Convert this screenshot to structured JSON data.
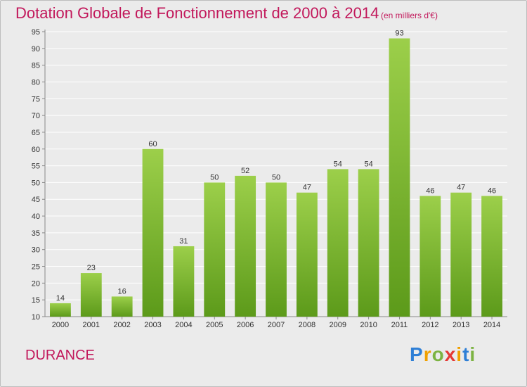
{
  "header": {
    "title": "Dotation Globale de Fonctionnement de 2000 à 2014",
    "subtitle": "(en milliers d'€)"
  },
  "footer": {
    "location": "DURANCE",
    "brand": [
      "P",
      "r",
      "o",
      "x",
      "i",
      "t",
      "i"
    ],
    "brand_colors": [
      "#2e7fd6",
      "#f0a000",
      "#7cb342",
      "#e53935",
      "#f0a000",
      "#2e7fd6",
      "#7cb342"
    ]
  },
  "colors": {
    "accent": "#c2185b",
    "bar_top": "#9ccf4a",
    "bar_bottom": "#5c9a1a",
    "grid": "#ffffff",
    "background": "#ebebeb"
  },
  "chart_data": {
    "type": "bar",
    "categories": [
      "2000",
      "2001",
      "2002",
      "2003",
      "2004",
      "2005",
      "2006",
      "2007",
      "2008",
      "2009",
      "2010",
      "2011",
      "2012",
      "2013",
      "2014"
    ],
    "values": [
      14,
      23,
      16,
      60,
      31,
      50,
      52,
      50,
      47,
      54,
      54,
      93,
      46,
      47,
      46
    ],
    "title": "Dotation Globale de Fonctionnement de 2000 à 2014",
    "subtitle": "(en milliers d'€)",
    "xlabel": "",
    "ylabel": "",
    "ylim": [
      10,
      95
    ],
    "yticks": [
      10,
      15,
      20,
      25,
      30,
      35,
      40,
      45,
      50,
      55,
      60,
      65,
      70,
      75,
      80,
      85,
      90,
      95
    ],
    "grid": true,
    "legend": "none"
  }
}
